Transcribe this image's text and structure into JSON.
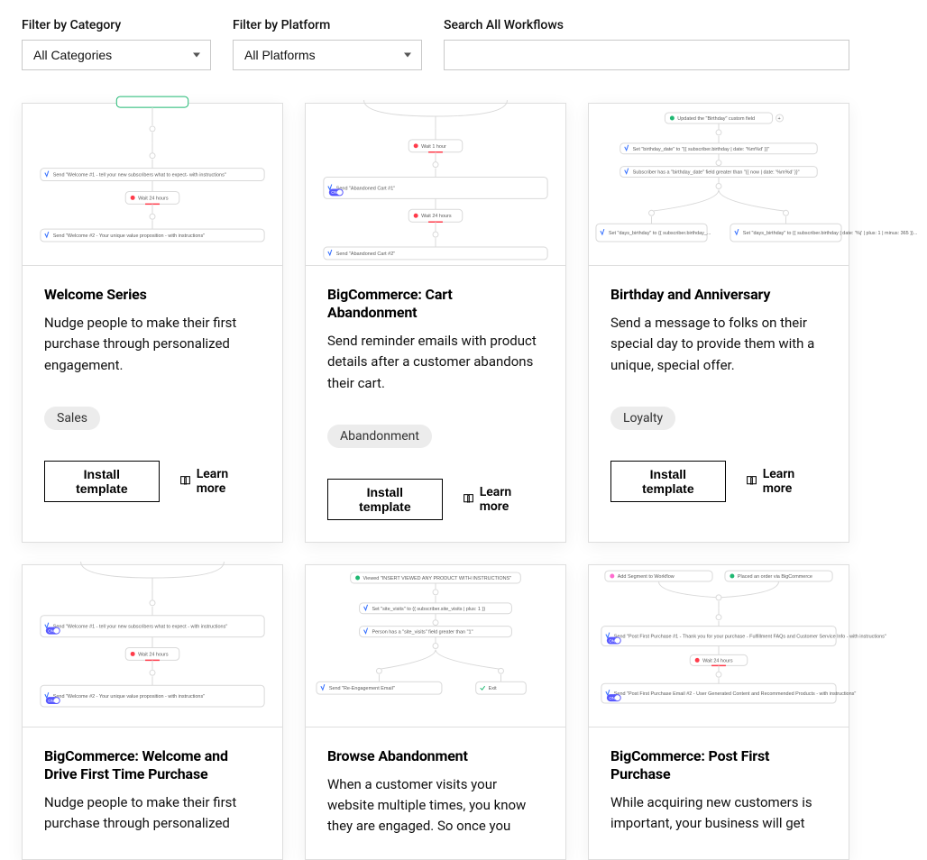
{
  "filters": {
    "category": {
      "label": "Filter by Category",
      "options": [
        "All Categories"
      ],
      "selected": "All Categories"
    },
    "platform": {
      "label": "Filter by Platform",
      "options": [
        "All Platforms"
      ],
      "selected": "All Platforms"
    },
    "search": {
      "label": "Search All Workflows",
      "value": ""
    }
  },
  "common": {
    "install_label": "Install template",
    "learn_more_label": "Learn more"
  },
  "colors": {
    "card_border": "#dedede",
    "tag_bg": "#ececec",
    "accent_red": "#ff3b4a",
    "accent_blue": "#2f6bff",
    "accent_green": "#1fb872",
    "accent_purple": "#5858ff",
    "accent_pink": "#ff6ccf"
  },
  "cards": [
    {
      "title": "Welcome Series",
      "desc": "Nudge people to make their first purchase through personalized engagement.",
      "tags": [
        "Sales"
      ],
      "thumb": {
        "type": "linear",
        "steps": [
          {
            "kind": "top_edge",
            "color": "#1fb872"
          },
          {
            "kind": "send",
            "label": "Send \"Welcome #1 - tell your new subscribers what to expect- with instructions\""
          },
          {
            "kind": "wait",
            "label": "Wait 24 hours"
          },
          {
            "kind": "send",
            "label": "Send \"Welcome #2 - Your unique value proposition - with instructions\""
          }
        ]
      }
    },
    {
      "title": "BigCommerce: Cart Abandonment",
      "desc": "Send reminder emails with product details after a customer abandons their cart.",
      "tags": [
        "Abandonment"
      ],
      "thumb": {
        "type": "linear",
        "steps": [
          {
            "kind": "converge"
          },
          {
            "kind": "wait",
            "label": "Wait 1 hour"
          },
          {
            "kind": "send_toggle",
            "label": "Send \"Abandoned Cart #1\""
          },
          {
            "kind": "wait",
            "label": "Wait 24 hours"
          },
          {
            "kind": "send",
            "label": "Send \"Abandoned Cart #2\""
          }
        ]
      }
    },
    {
      "title": "Birthday and Anniversary",
      "desc": "Send a message to folks on their special day to provide them with a unique, special offer.",
      "tags": [
        "Loyalty"
      ],
      "thumb": {
        "type": "branching",
        "top": {
          "kind": "start",
          "label": "Updated the \"Birthday\" custom field",
          "color": "#1fb872"
        },
        "mid": [
          {
            "kind": "cond",
            "label": "Set \"birthday_date\" to \"{{ subscriber.birthday | date: '%m%d' }}\""
          },
          {
            "kind": "cond",
            "label": "Subscriber has a \"birthday_date\" field greater than \"{{ now | date: '%m%d' }}\""
          }
        ],
        "branches": [
          {
            "label": "Set \"days_birthday\" to {{ subscriber.birthday_..."
          },
          {
            "label": "Set \"days_birthday\" to {{ subscriber.birthday | date: '%j' | plus: 1 | minus: 365 }}..."
          }
        ]
      }
    },
    {
      "title": "BigCommerce: Welcome and Drive First Time Purchase",
      "desc": "Nudge people to make their first purchase through personalized",
      "tags": [],
      "thumb": {
        "type": "linear",
        "steps": [
          {
            "kind": "converge"
          },
          {
            "kind": "send_toggle",
            "label": "Send \"Welcome #1 - tell your new subscribers what to expect - with instructions\""
          },
          {
            "kind": "wait",
            "label": "Wait 24 hours"
          },
          {
            "kind": "send_toggle",
            "label": "Send \"Welcome #2 - Your unique value proposition - with instructions\""
          }
        ]
      }
    },
    {
      "title": "Browse Abandonment",
      "desc": "When a customer visits your website multiple times, you know they are engaged. So once you",
      "tags": [],
      "thumb": {
        "type": "branching2",
        "top": {
          "kind": "start",
          "label": "Viewed \"INSERT VIEWED ANY PRODUCT WITH INSTRUCTIONS\"",
          "color": "#1fb872"
        },
        "mid": [
          {
            "kind": "cond",
            "label": "Set \"site_visits\" to {{ subscriber.site_visits | plus: 1 }}"
          },
          {
            "kind": "cond",
            "label": "Person has a \"site_visits\" field greater than \"1\""
          }
        ],
        "branches": [
          {
            "label": "Send \"Re-Engagement Email\"",
            "icon": "blue"
          },
          {
            "label": "Exit",
            "icon": "check"
          }
        ]
      }
    },
    {
      "title": "BigCommerce: Post First Purchase",
      "desc": "While acquiring new customers is important, your business will get",
      "tags": [],
      "thumb": {
        "type": "dual_start",
        "starts": [
          {
            "label": "Add Segment to Workflow",
            "color": "#ff6ccf"
          },
          {
            "label": "Placed an order via BigCommerce",
            "color": "#1fb872"
          }
        ],
        "steps": [
          {
            "kind": "send_toggle",
            "label": "Send \"Post First Purchase #1 - Thank you for your purchase - Fulfillment FAQs and Customer Service Info - with instructions\""
          },
          {
            "kind": "wait",
            "label": "Wait 24 hours"
          },
          {
            "kind": "send_toggle",
            "label": "Send \"Post First Purchase Email #2 - User Generated Content and Recommended Products - with instructions\""
          }
        ]
      }
    }
  ]
}
